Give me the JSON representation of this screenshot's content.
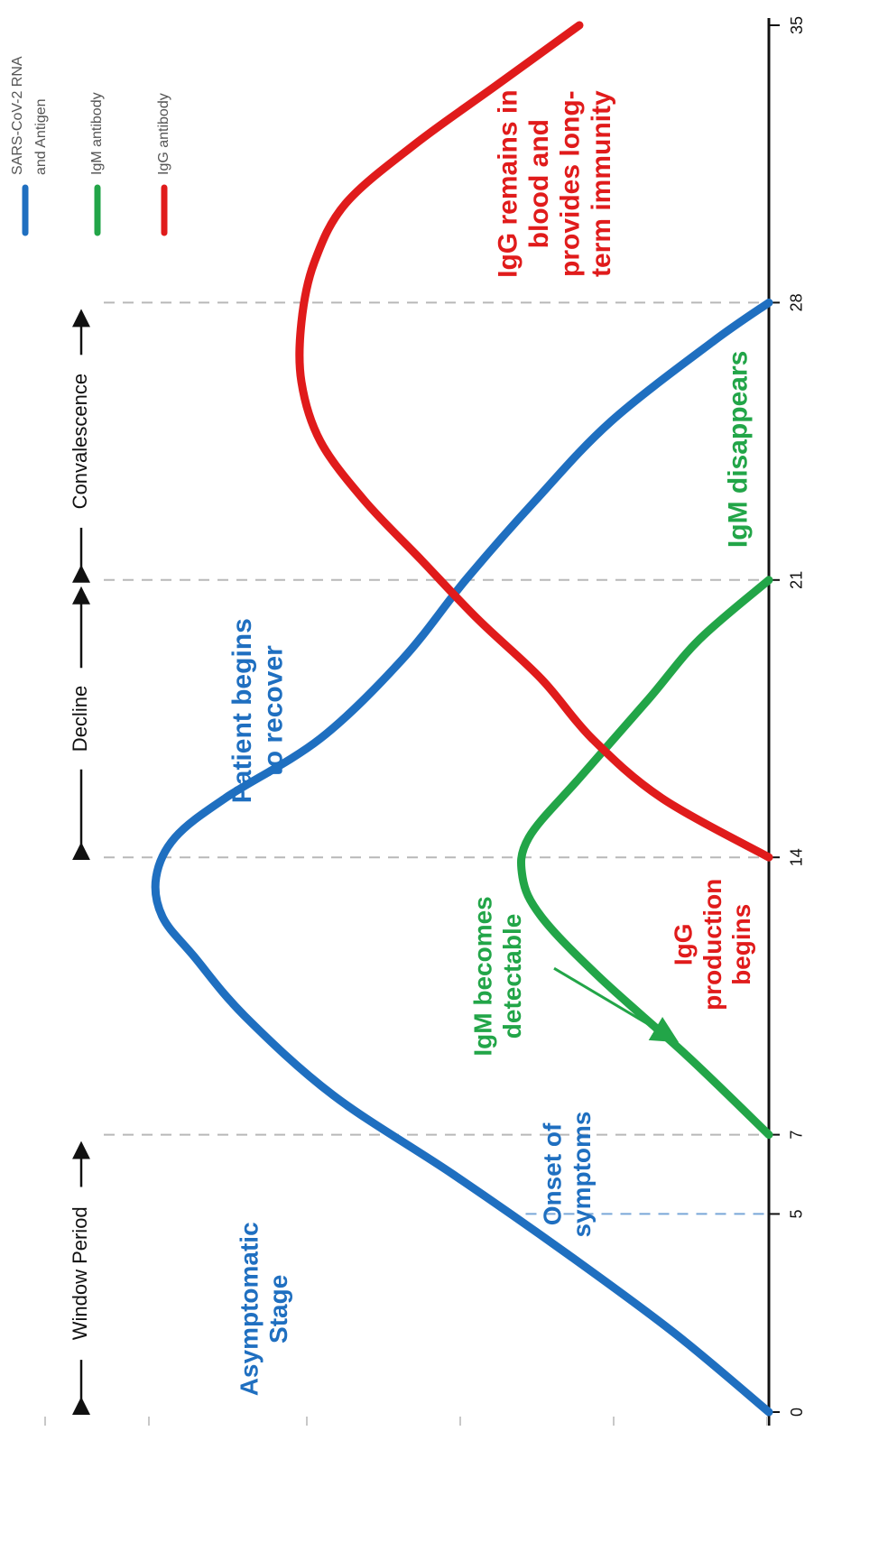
{
  "chart_data": {
    "type": "line",
    "orientation": "rotated-90-ccw",
    "title": "",
    "xlabel": "",
    "ylabel": "",
    "x_ticks": [
      0,
      5,
      7,
      14,
      21,
      28,
      35
    ],
    "xlim": [
      0,
      35
    ],
    "ylim": [
      0,
      10
    ],
    "grid": false,
    "legend_position": "top-right",
    "legend": [
      {
        "lines": [
          "SARS-CoV-2 RNA",
          "and Antigen"
        ],
        "color": "#1f6fc0"
      },
      {
        "lines": [
          "IgM antibody"
        ],
        "color": "#22a548"
      },
      {
        "lines": [
          "IgG antibody"
        ],
        "color": "#e01b1b"
      }
    ],
    "series": [
      {
        "name": "SARS-CoV-2 RNA and Antigen",
        "color": "#1f6fc0",
        "points": [
          [
            0,
            0
          ],
          [
            2,
            1.5
          ],
          [
            4,
            3.2
          ],
          [
            6,
            5.0
          ],
          [
            8,
            6.9
          ],
          [
            10,
            8.3
          ],
          [
            11.5,
            9.1
          ],
          [
            12.5,
            9.6
          ],
          [
            13.5,
            9.7
          ],
          [
            14.5,
            9.4
          ],
          [
            15.5,
            8.6
          ],
          [
            17,
            7.1
          ],
          [
            19,
            5.8
          ],
          [
            21,
            4.8
          ],
          [
            23,
            3.7
          ],
          [
            25,
            2.5
          ],
          [
            27,
            0.9
          ],
          [
            28,
            0
          ]
        ]
      },
      {
        "name": "IgM antibody",
        "color": "#22a548",
        "points": [
          [
            7,
            0
          ],
          [
            9,
            1.3
          ],
          [
            11,
            2.7
          ],
          [
            12.5,
            3.6
          ],
          [
            13.5,
            3.9
          ],
          [
            14.5,
            3.8
          ],
          [
            16,
            3.0
          ],
          [
            18,
            1.9
          ],
          [
            19.5,
            1.1
          ],
          [
            21,
            0
          ]
        ]
      },
      {
        "name": "IgG antibody",
        "color": "#e01b1b",
        "points": [
          [
            14,
            0
          ],
          [
            15.5,
            1.7
          ],
          [
            17,
            2.8
          ],
          [
            18.5,
            3.6
          ],
          [
            20,
            4.6
          ],
          [
            21.5,
            5.5
          ],
          [
            23,
            6.4
          ],
          [
            24.5,
            7.1
          ],
          [
            26,
            7.4
          ],
          [
            27.5,
            7.4
          ],
          [
            29,
            7.2
          ],
          [
            30.5,
            6.7
          ],
          [
            32,
            5.6
          ],
          [
            33.5,
            4.3
          ],
          [
            35,
            3.0
          ]
        ]
      }
    ],
    "reference_lines": [
      {
        "x": 5,
        "color": "#7aa7d8"
      },
      {
        "x": 7,
        "color": "#b8b8b8"
      },
      {
        "x": 14,
        "color": "#b8b8b8"
      },
      {
        "x": 21,
        "color": "#b8b8b8"
      },
      {
        "x": 28,
        "color": "#b8b8b8"
      }
    ],
    "phases": [
      {
        "label": "Window Period",
        "from": 0,
        "to": 7
      },
      {
        "label": "Decline",
        "from": 14,
        "to": 21
      },
      {
        "label": "Convalescence",
        "from": 21,
        "to": 28
      }
    ],
    "annotations": [
      {
        "lines": [
          "Asymptomatic",
          "Stage"
        ],
        "x": 2.6,
        "y": 8.0,
        "color": "#1f6fc0",
        "weight": "bold",
        "size": 28
      },
      {
        "lines": [
          "Onset of",
          "symptoms"
        ],
        "x": 6.0,
        "y": 3.2,
        "color": "#1f6fc0",
        "weight": "bold",
        "size": 28
      },
      {
        "lines": [
          "IgM becomes",
          "detectable"
        ],
        "x": 11.0,
        "y": 4.3,
        "color": "#22a548",
        "weight": "bold",
        "size": 28
      },
      {
        "lines": [
          "IgG",
          "production",
          "begins"
        ],
        "x": 11.8,
        "y": 0.9,
        "color": "#e01b1b",
        "weight": "bold",
        "size": 28
      },
      {
        "lines": [
          "Patient begins",
          "to recover"
        ],
        "x": 17.7,
        "y": 8.1,
        "color": "#1f6fc0",
        "weight": "bold",
        "size": 30
      },
      {
        "lines": [
          "IgM disappears"
        ],
        "x": 24.3,
        "y": 0.5,
        "color": "#22a548",
        "weight": "bold",
        "size": 30
      },
      {
        "lines": [
          "IgG remains in",
          "blood and",
          "provides long-",
          "term immunity"
        ],
        "x": 31.0,
        "y": 3.4,
        "color": "#e01b1b",
        "weight": "bold",
        "size": 30
      }
    ],
    "arrow": {
      "from": [
        11.2,
        3.4
      ],
      "to": [
        9.4,
        1.5
      ],
      "color": "#22a548"
    }
  }
}
